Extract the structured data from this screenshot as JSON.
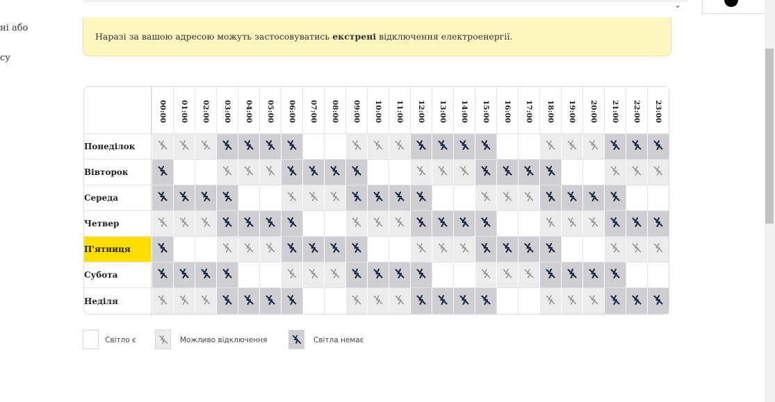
{
  "left_fragments": [
    "ні або",
    "су"
  ],
  "alert": {
    "prefix": "Наразі за вашою адресою можуть застосовуватись ",
    "emphasis": "екстрені",
    "suffix": " відключення електроенергії."
  },
  "hours": [
    "00:00",
    "01:00",
    "02:00",
    "03:00",
    "04:00",
    "05:00",
    "06:00",
    "07:00",
    "08:00",
    "09:00",
    "10:00",
    "11:00",
    "12:00",
    "13:00",
    "14:00",
    "15:00",
    "16:00",
    "17:00",
    "18:00",
    "19:00",
    "20:00",
    "21:00",
    "22:00",
    "23:00"
  ],
  "days": [
    {
      "name": "Понеділок",
      "active": false,
      "slots": [
        "maybe",
        "maybe",
        "maybe",
        "off",
        "off",
        "off",
        "off",
        "none",
        "none",
        "maybe",
        "maybe",
        "maybe",
        "off",
        "off",
        "off",
        "off",
        "none",
        "none",
        "maybe",
        "maybe",
        "maybe",
        "off",
        "off",
        "off"
      ]
    },
    {
      "name": "Вівторок",
      "active": false,
      "slots": [
        "off",
        "none",
        "none",
        "maybe",
        "maybe",
        "maybe",
        "off",
        "off",
        "off",
        "off",
        "none",
        "none",
        "maybe",
        "maybe",
        "maybe",
        "off",
        "off",
        "off",
        "off",
        "none",
        "none",
        "maybe",
        "maybe",
        "maybe"
      ]
    },
    {
      "name": "Середа",
      "active": false,
      "slots": [
        "off",
        "off",
        "off",
        "off",
        "none",
        "none",
        "maybe",
        "maybe",
        "maybe",
        "off",
        "off",
        "off",
        "off",
        "none",
        "none",
        "maybe",
        "maybe",
        "maybe",
        "off",
        "off",
        "off",
        "off",
        "none",
        "none"
      ]
    },
    {
      "name": "Четвер",
      "active": false,
      "slots": [
        "maybe",
        "maybe",
        "maybe",
        "off",
        "off",
        "off",
        "off",
        "none",
        "none",
        "maybe",
        "maybe",
        "maybe",
        "off",
        "off",
        "off",
        "off",
        "none",
        "none",
        "maybe",
        "maybe",
        "maybe",
        "off",
        "off",
        "off"
      ]
    },
    {
      "name": "П'ятниця",
      "active": true,
      "slots": [
        "off",
        "none",
        "none",
        "maybe",
        "maybe",
        "maybe",
        "off",
        "off",
        "off",
        "off",
        "none",
        "none",
        "maybe",
        "maybe",
        "maybe",
        "off",
        "off",
        "off",
        "off",
        "none",
        "none",
        "maybe",
        "maybe",
        "maybe"
      ]
    },
    {
      "name": "Субота",
      "active": false,
      "slots": [
        "off",
        "off",
        "off",
        "off",
        "none",
        "none",
        "maybe",
        "maybe",
        "maybe",
        "off",
        "off",
        "off",
        "off",
        "none",
        "none",
        "maybe",
        "maybe",
        "maybe",
        "off",
        "off",
        "off",
        "off",
        "none",
        "none"
      ]
    },
    {
      "name": "Неділя",
      "active": false,
      "slots": [
        "maybe",
        "maybe",
        "maybe",
        "off",
        "off",
        "off",
        "off",
        "none",
        "none",
        "maybe",
        "maybe",
        "maybe",
        "off",
        "off",
        "off",
        "off",
        "none",
        "none",
        "maybe",
        "maybe",
        "maybe",
        "off",
        "off",
        "off"
      ]
    }
  ],
  "legend": {
    "power_on": "Світло є",
    "maybe_off": "Можливо відключення",
    "power_off": "Світла немає"
  },
  "colors": {
    "active_day": "#ffde00",
    "alert_bg": "#fdf6bf",
    "off_bg": "#cfcfd3",
    "maybe_bg": "#ececec",
    "off_icon": "#1f2a44",
    "maybe_icon": "#9a9a9a"
  }
}
